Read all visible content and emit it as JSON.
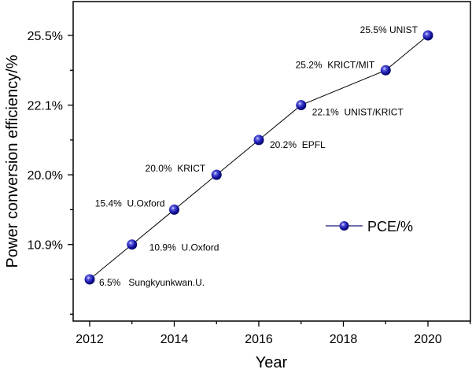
{
  "chart_data": {
    "type": "line",
    "title": "",
    "xlabel": "Year",
    "ylabel": "Power conversion efficiency/%",
    "x": [
      2012,
      2013,
      2014,
      2015,
      2016,
      2017,
      2019,
      2020
    ],
    "series": [
      {
        "name": "PCE/%",
        "values": [
          6.5,
          10.9,
          15.4,
          20.0,
          20.2,
          22.1,
          25.2,
          25.5
        ],
        "color": "#1a1aa6"
      }
    ],
    "y_scale": "ordinal-rank",
    "y_levels": [
      6.5,
      10.9,
      15.4,
      20.0,
      20.2,
      22.1,
      25.2,
      25.5
    ],
    "x_ticks": [
      "2012",
      "2014",
      "2016",
      "2018",
      "2020"
    ],
    "xlim": [
      2011.6,
      2021.0
    ],
    "y_tick_labels": [
      "10.9%",
      "20.0%",
      "22.1%",
      "25.5%"
    ],
    "y_tick_label_values": [
      10.9,
      20.0,
      22.1,
      25.5
    ],
    "annotations": [
      {
        "x": 2012,
        "text": "6.5%   Sungkyunkwan.U.",
        "side": "right"
      },
      {
        "x": 2013,
        "text": "10.9%  U.Oxford",
        "side": "right"
      },
      {
        "x": 2014,
        "text": "15.4%  U.Oxford",
        "side": "left"
      },
      {
        "x": 2015,
        "text": "20.0%  KRICT",
        "side": "left"
      },
      {
        "x": 2016,
        "text": "20.2%  EPFL",
        "side": "right"
      },
      {
        "x": 2017,
        "text": "22.1%  UNIST/KRICT",
        "side": "right"
      },
      {
        "x": 2019,
        "text": "25.2%  KRICT/MIT",
        "side": "left"
      },
      {
        "x": 2020,
        "text": "25.5% UNIST",
        "side": "left"
      }
    ],
    "legend": {
      "label": "PCE/%",
      "position": "center-right"
    },
    "grid": false
  }
}
